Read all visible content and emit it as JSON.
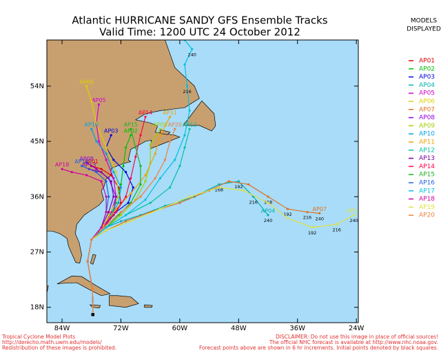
{
  "header": {
    "title": [
      "Atlantic HURRICANE SANDY GFS Ensemble Tracks",
      "Valid Time: 1200 UTC 24 October 2012"
    ]
  },
  "legend": {
    "title": [
      "MODELS",
      "DISPLAYED"
    ]
  },
  "map": {
    "xlim": [
      -87.1,
      -23.6
    ],
    "ylim": [
      15.5,
      61.5
    ],
    "xticks": [
      {
        "value": -84,
        "label": "84W"
      },
      {
        "value": -72,
        "label": "72W"
      },
      {
        "value": -60,
        "label": "60W"
      },
      {
        "value": -48,
        "label": "48W"
      },
      {
        "value": -36,
        "label": "36W"
      },
      {
        "value": -24,
        "label": "24W"
      }
    ],
    "yticks": [
      {
        "value": 18,
        "label": "18N"
      },
      {
        "value": 27,
        "label": "27N"
      },
      {
        "value": 36,
        "label": "36N"
      },
      {
        "value": 45,
        "label": "45N"
      },
      {
        "value": 54,
        "label": "54N"
      }
    ],
    "tracks": [
      {
        "name": "AP01",
        "color": "#e00000",
        "lon": [
          -77.7,
          -77.8,
          -78.8,
          -78,
          -75.5,
          -73.5,
          -72,
          -72.5,
          -74,
          -76,
          -78
        ],
        "lat": [
          16.8,
          21,
          25.5,
          29,
          31.5,
          33,
          35,
          37.5,
          39.5,
          40.5,
          41
        ]
      },
      {
        "name": "AP02",
        "color": "#00c000",
        "lon": [
          -77.7,
          -77.8,
          -78.8,
          -78,
          -76,
          -74,
          -73,
          -72,
          -71.5,
          -71,
          -70
        ],
        "lat": [
          16.8,
          21,
          25.5,
          29,
          31,
          33,
          35,
          38,
          41,
          44,
          46
        ]
      },
      {
        "name": "AP03",
        "color": "#0000e0",
        "lon": [
          -77.7,
          -77.8,
          -78.8,
          -78,
          -75.5,
          -73,
          -70.5,
          -69.5,
          -71,
          -73.5,
          -75,
          -74
        ],
        "lat": [
          16.8,
          21,
          25.5,
          29,
          31,
          33.5,
          35,
          37.5,
          40,
          42,
          44,
          46
        ]
      },
      {
        "name": "AP04",
        "color": "#00b0b0",
        "lon": [
          -77.7,
          -77.8,
          -78.8,
          -78,
          -75,
          -72,
          -68,
          -63,
          -57,
          -52,
          -48,
          -45,
          -42
        ],
        "lat": [
          16.8,
          21,
          25.5,
          29,
          31,
          32,
          33,
          34.5,
          36,
          38,
          38.5,
          36,
          33
        ],
        "hours": [
          null,
          null,
          null,
          null,
          null,
          null,
          null,
          null,
          null,
          168,
          192,
          216,
          240
        ]
      },
      {
        "name": "AP05",
        "color": "#d000d0",
        "lon": [
          -77.7,
          -77.8,
          -78.8,
          -78,
          -75.5,
          -74,
          -73,
          -73.5,
          -75,
          -76.5,
          -77,
          -76.5
        ],
        "lat": [
          16.8,
          21,
          25.5,
          29,
          31,
          33.5,
          36,
          39,
          42,
          45,
          48,
          51
        ]
      },
      {
        "name": "AP06",
        "color": "#e0d000",
        "lon": [
          -77.7,
          -77.8,
          -78.8,
          -78,
          -76,
          -74.5,
          -72.5,
          -73,
          -75,
          -77,
          -78,
          -79
        ],
        "lat": [
          16.8,
          21,
          25.5,
          29,
          30.5,
          33,
          36,
          40,
          44,
          48,
          51.5,
          54
        ]
      },
      {
        "name": "AP07",
        "color": "#e07020",
        "lon": [
          -77.7,
          -77.8,
          -78.8,
          -78,
          -75,
          -71,
          -66,
          -60,
          -54,
          -50,
          -46,
          -42,
          -38,
          -34,
          -31.5
        ],
        "lat": [
          16.8,
          21,
          25.5,
          29,
          30.5,
          32,
          33.5,
          35,
          37,
          38.5,
          38,
          36,
          34,
          33.5,
          33.3
        ],
        "hours": [
          null,
          null,
          null,
          null,
          null,
          null,
          null,
          null,
          null,
          null,
          null,
          168,
          192,
          216,
          240
        ]
      },
      {
        "name": "AP08",
        "color": "#9000e0",
        "lon": [
          -77.7,
          -77.8,
          -78.8,
          -78,
          -75.5,
          -73.5,
          -73,
          -74.5,
          -77,
          -79
        ],
        "lat": [
          16.8,
          21,
          25.5,
          29,
          31,
          33.5,
          36,
          39,
          40.5,
          41.5
        ]
      },
      {
        "name": "AP09",
        "color": "#a0d000",
        "lon": [
          -77.7,
          -77.8,
          -78.8,
          -78,
          -75,
          -72,
          -69,
          -67,
          -66,
          -66,
          -64
        ],
        "lat": [
          16.8,
          21,
          25.5,
          29,
          31,
          33,
          35.5,
          38.5,
          41.5,
          44.5,
          47
        ]
      },
      {
        "name": "AP10",
        "color": "#00a0e0",
        "lon": [
          -77.7,
          -77.8,
          -78.8,
          -78,
          -76,
          -74,
          -72.5,
          -72,
          -73.5,
          -75,
          -77,
          -78
        ],
        "lat": [
          16.8,
          21,
          25.5,
          29,
          31,
          33,
          35,
          37.5,
          40,
          43,
          45,
          47
        ]
      },
      {
        "name": "AP11",
        "color": "#f0a000",
        "lon": [
          -77.7,
          -77.8,
          -78.8,
          -78,
          -75.5,
          -73,
          -70,
          -67,
          -65,
          -64,
          -62
        ],
        "lat": [
          16.8,
          21,
          25.5,
          29,
          31.5,
          34,
          36.5,
          39.5,
          43,
          46,
          49
        ]
      },
      {
        "name": "AP12",
        "color": "#00c0a0",
        "lon": [
          -77.7,
          -77.8,
          -78.8,
          -78,
          -75,
          -71,
          -66,
          -62,
          -60,
          -59,
          -58
        ],
        "lat": [
          16.8,
          21,
          25.5,
          29,
          31,
          33,
          35,
          37.5,
          41,
          44,
          47
        ]
      },
      {
        "name": "AP13",
        "color": "#8000a0",
        "lon": [
          -77.7,
          -77.8,
          -78.8,
          -78,
          -76,
          -74.5,
          -73.5,
          -74,
          -76,
          -78.5
        ],
        "lat": [
          16.8,
          21,
          25.5,
          29,
          31,
          33.5,
          36,
          38.5,
          40,
          40.5
        ]
      },
      {
        "name": "AP14",
        "color": "#ff0040",
        "lon": [
          -77.7,
          -77.8,
          -78.8,
          -78,
          -75.5,
          -73,
          -71,
          -70,
          -69,
          -68,
          -67
        ],
        "lat": [
          16.8,
          21,
          25.5,
          29,
          31,
          33.5,
          36,
          39,
          42.5,
          46,
          49
        ]
      },
      {
        "name": "AP15",
        "color": "#20b020",
        "lon": [
          -77.7,
          -77.8,
          -78.8,
          -78,
          -75,
          -72.5,
          -70,
          -68,
          -68,
          -69,
          -70
        ],
        "lat": [
          16.8,
          21,
          25.5,
          29,
          31,
          33,
          35,
          38,
          41,
          44,
          47
        ]
      },
      {
        "name": "AP16",
        "color": "#2060e0",
        "lon": [
          -77.7,
          -77.8,
          -78.8,
          -78,
          -76,
          -75,
          -74.5,
          -75,
          -77,
          -80
        ],
        "lat": [
          16.8,
          21,
          25.5,
          29,
          31,
          33.5,
          36,
          38.5,
          40,
          41
        ]
      },
      {
        "name": "AP17",
        "color": "#00c0e0",
        "lon": [
          -77.7,
          -77.8,
          -78.8,
          -78,
          -75,
          -71,
          -67,
          -64,
          -61,
          -59,
          -58,
          -58.5,
          -59,
          -57.5,
          -59
        ],
        "lat": [
          16.8,
          21,
          25.5,
          29,
          31,
          33,
          35.5,
          39,
          42,
          46,
          50,
          54,
          57.5,
          60,
          61.5
        ],
        "hours": [
          null,
          null,
          null,
          null,
          null,
          null,
          null,
          null,
          null,
          null,
          null,
          216,
          null,
          240,
          null
        ]
      },
      {
        "name": "AP18",
        "color": "#d000a0",
        "lon": [
          -77.7,
          -77.8,
          -78.8,
          -78,
          -76,
          -75,
          -75,
          -76,
          -79,
          -82,
          -84
        ],
        "lat": [
          16.8,
          21,
          25.5,
          29,
          31,
          33.5,
          36,
          38.5,
          39.5,
          40,
          40.5
        ]
      },
      {
        "name": "AP19",
        "color": "#e0e040",
        "lon": [
          -77.7,
          -77.8,
          -78.8,
          -78,
          -75,
          -70,
          -64,
          -58,
          -52,
          -47,
          -42,
          -38,
          -33,
          -28,
          -24.5
        ],
        "lat": [
          16.8,
          21,
          25.5,
          29,
          30.5,
          32,
          34,
          36,
          37.5,
          37,
          35,
          32.5,
          31,
          31.5,
          33
        ],
        "hours": [
          null,
          null,
          null,
          null,
          null,
          null,
          null,
          null,
          null,
          null,
          null,
          null,
          192,
          216,
          240
        ]
      },
      {
        "name": "AP20",
        "color": "#f08040",
        "lon": [
          -77.7,
          -77.8,
          -78.8,
          -78,
          -75.5,
          -72,
          -68,
          -65,
          -63,
          -62,
          -61
        ],
        "lat": [
          16.8,
          21,
          25.5,
          29,
          31,
          33.5,
          36,
          39,
          42,
          45,
          47
        ]
      }
    ]
  },
  "footer": {
    "left": [
      "Tropical Cyclone Model Plots",
      "http://derecho.math.uwm.edu/models/",
      "Redistribution of these images is prohibited."
    ],
    "right": [
      "DISCLAIMER: Do not use this image in place of official sources!",
      "The official NHC forecast is available at http://www.nhc.noaa.gov.",
      "Forecast points above are shown in 6 hr increments. Initial points denoted by black squares."
    ]
  }
}
